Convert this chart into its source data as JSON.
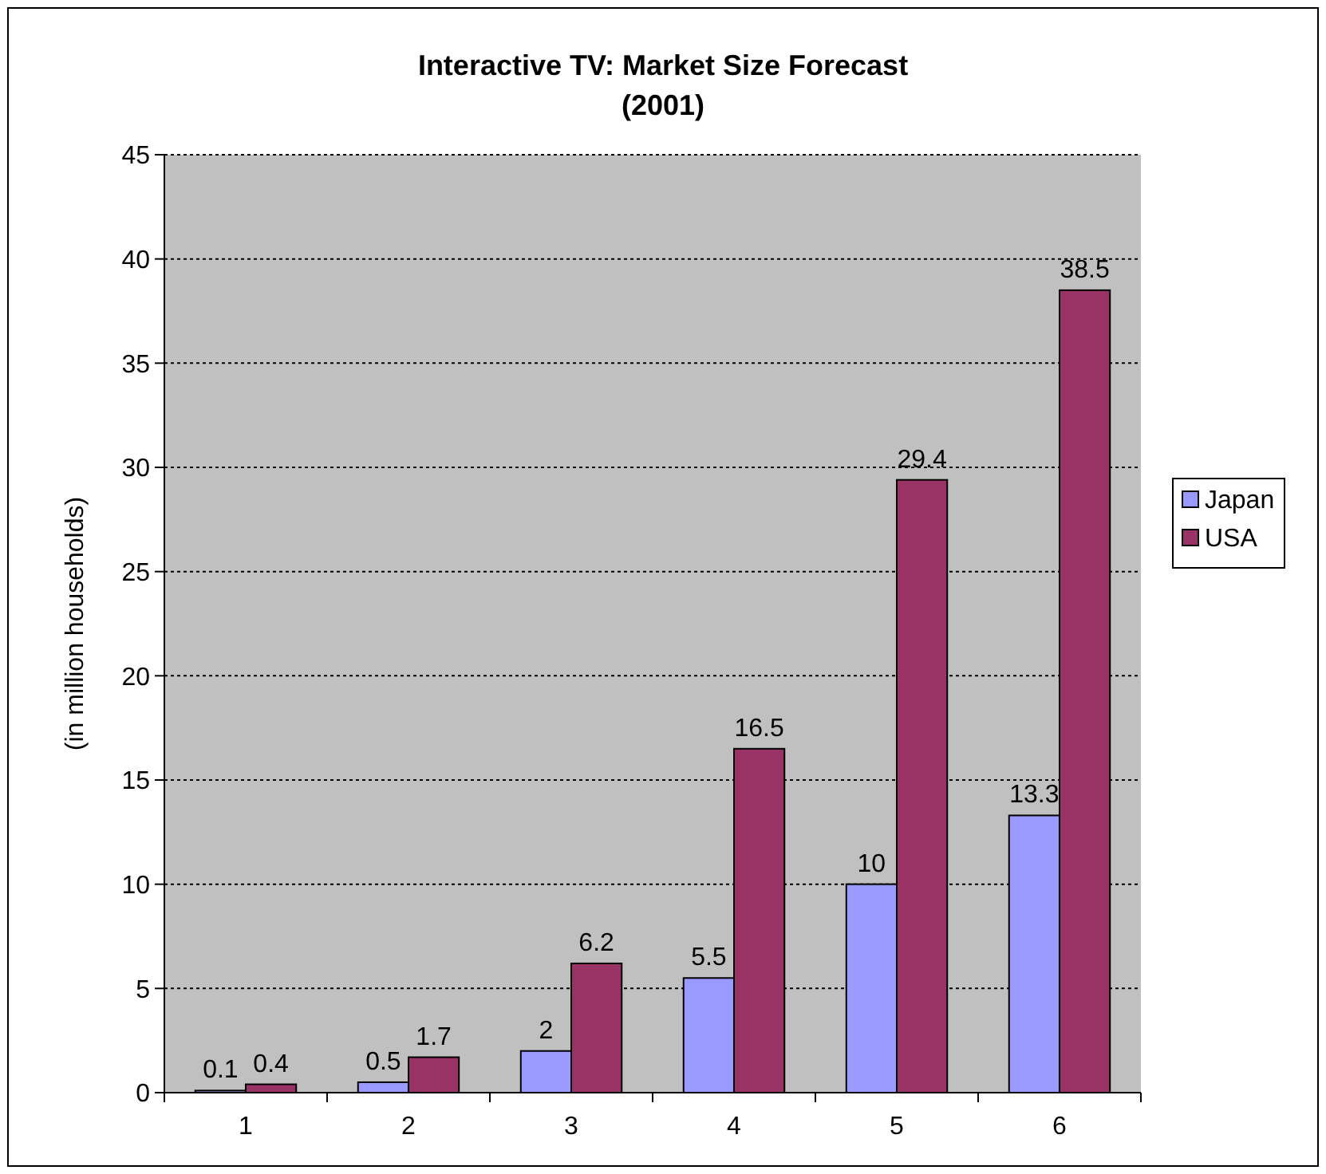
{
  "chart_data": {
    "type": "bar",
    "title": "Interactive TV: Market Size Forecast",
    "subtitle": "(2001)",
    "ylabel": "(in million households)",
    "categories": [
      "1",
      "2",
      "3",
      "4",
      "5",
      "6"
    ],
    "series": [
      {
        "name": "Japan",
        "color": "#9999ff",
        "values": [
          0.1,
          0.5,
          2,
          5.5,
          10,
          13.3
        ]
      },
      {
        "name": "USA",
        "color": "#993366",
        "values": [
          0.4,
          1.7,
          6.2,
          16.5,
          29.4,
          38.5
        ]
      }
    ],
    "ylim": [
      0,
      45
    ],
    "yticks": [
      0,
      5,
      10,
      15,
      20,
      25,
      30,
      35,
      40,
      45
    ],
    "grid": "y",
    "legend": "right",
    "data_labels": true
  }
}
